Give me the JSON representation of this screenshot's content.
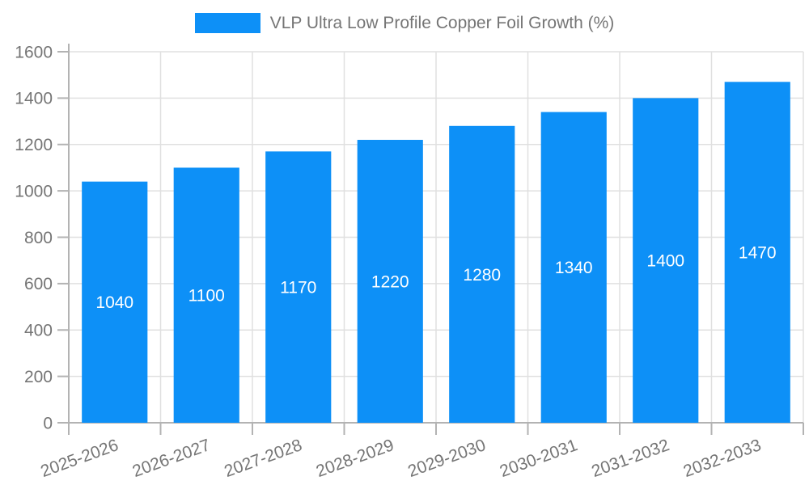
{
  "legend": {
    "label": "VLP Ultra Low Profile Copper Foil Growth (%)"
  },
  "chart_data": {
    "type": "bar",
    "title": "VLP Ultra Low Profile Copper Foil Growth (%)",
    "categories": [
      "2025-2026",
      "2026-2027",
      "2027-2028",
      "2028-2029",
      "2029-2030",
      "2030-2031",
      "2031-2032",
      "2032-2033"
    ],
    "values": [
      1040,
      1100,
      1170,
      1220,
      1280,
      1340,
      1400,
      1470
    ],
    "value_labels": [
      "1040",
      "1100",
      "1170",
      "1220",
      "1280",
      "1340",
      "1400",
      "1470"
    ],
    "xlabel": "",
    "ylabel": "",
    "ylim": [
      0,
      1600
    ],
    "ytick_step": 200,
    "yticks": [
      0,
      200,
      400,
      600,
      800,
      1000,
      1200,
      1400,
      1600
    ],
    "grid": true,
    "legend_position": "top",
    "colors": {
      "bar": "#0d90f7",
      "bar_value_label": "#ffffff",
      "axis_text": "#757575",
      "gridline": "#e0e0e0",
      "axis_line": "#b3b3b3",
      "background": "#ffffff"
    }
  }
}
